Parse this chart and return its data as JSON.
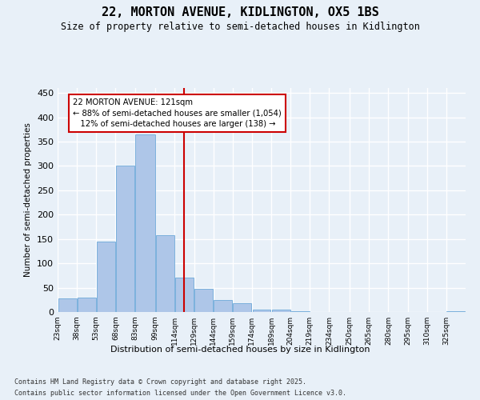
{
  "title_line1": "22, MORTON AVENUE, KIDLINGTON, OX5 1BS",
  "title_line2": "Size of property relative to semi-detached houses in Kidlington",
  "xlabel": "Distribution of semi-detached houses by size in Kidlington",
  "ylabel": "Number of semi-detached properties",
  "footnote1": "Contains HM Land Registry data © Crown copyright and database right 2025.",
  "footnote2": "Contains public sector information licensed under the Open Government Licence v3.0.",
  "property_size": 121,
  "property_label": "22 MORTON AVENUE: 121sqm",
  "pct_smaller": 88,
  "count_smaller": 1054,
  "pct_larger": 12,
  "count_larger": 138,
  "bin_labels": [
    "23sqm",
    "38sqm",
    "53sqm",
    "68sqm",
    "83sqm",
    "99sqm",
    "114sqm",
    "129sqm",
    "144sqm",
    "159sqm",
    "174sqm",
    "189sqm",
    "204sqm",
    "219sqm",
    "234sqm",
    "250sqm",
    "265sqm",
    "280sqm",
    "295sqm",
    "310sqm",
    "325sqm"
  ],
  "bin_edges": [
    23,
    38,
    53,
    68,
    83,
    99,
    114,
    129,
    144,
    159,
    174,
    189,
    204,
    219,
    234,
    250,
    265,
    280,
    295,
    310,
    325,
    340
  ],
  "bar_heights": [
    28,
    30,
    145,
    300,
    365,
    158,
    70,
    48,
    25,
    18,
    5,
    5,
    2,
    0,
    0,
    0,
    0,
    0,
    0,
    0,
    1
  ],
  "bar_color": "#aec6e8",
  "bar_edge_color": "#5a9fd4",
  "vline_x": 121,
  "vline_color": "#cc0000",
  "annotation_box_color": "#cc0000",
  "ylim": [
    0,
    460
  ],
  "yticks": [
    0,
    50,
    100,
    150,
    200,
    250,
    300,
    350,
    400,
    450
  ],
  "bg_color": "#e8f0f8",
  "plot_bg_color": "#e8f0f8",
  "grid_color": "#ffffff"
}
